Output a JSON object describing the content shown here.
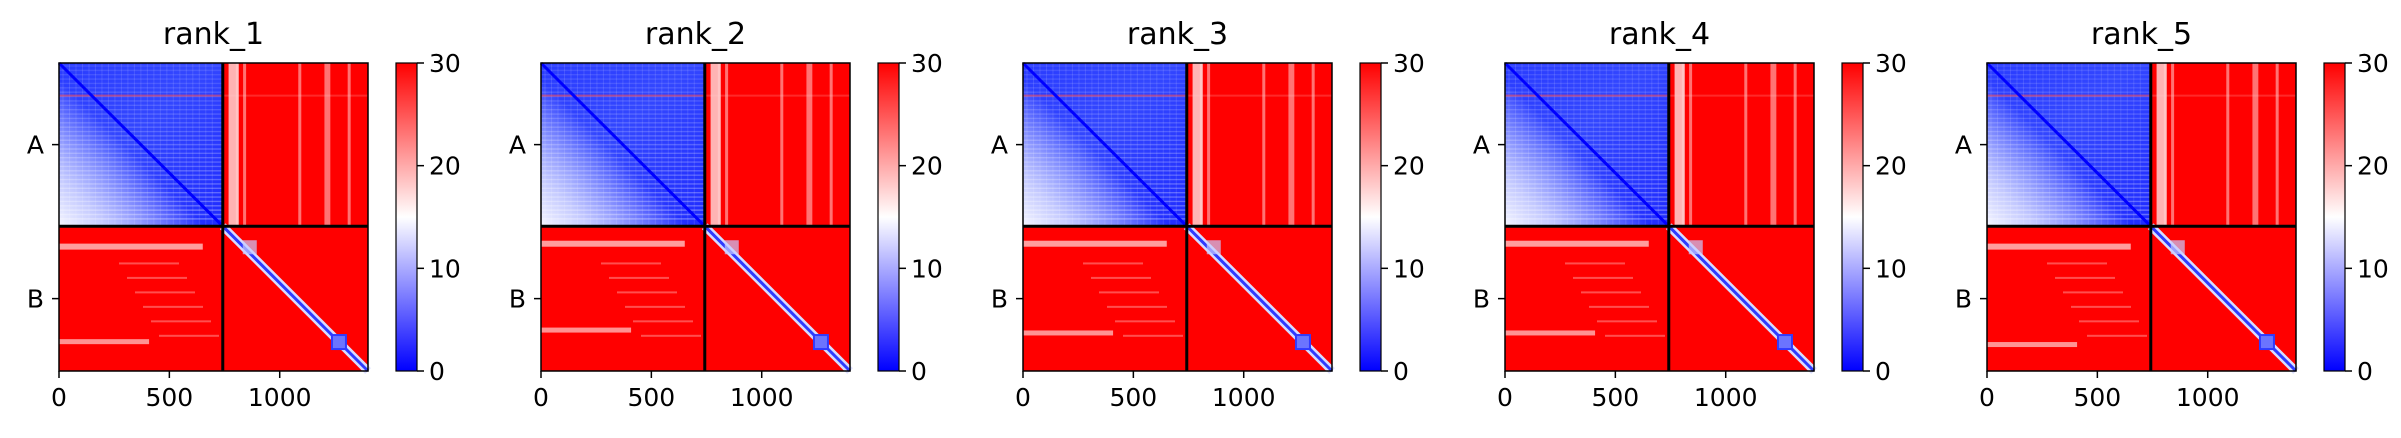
{
  "chart_data": [
    {
      "type": "heatmap",
      "title": "rank_1",
      "chains": [
        "A",
        "B"
      ],
      "chain_boundary": 742,
      "x_ticks": [
        0,
        500,
        1000
      ],
      "xlim": [
        0,
        1400
      ],
      "colorbar": {
        "min": 0,
        "max": 30,
        "ticks": [
          0,
          10,
          20,
          30
        ],
        "colors": [
          "#0000ff",
          "#ffffff",
          "#ff0000"
        ]
      },
      "dense_bands_A": [
        0.2
      ],
      "faint_band_B": 0.12,
      "faint_band_B2": 0.78,
      "light_band_x": [
        0.34
      ]
    },
    {
      "type": "heatmap",
      "title": "rank_2",
      "chains": [
        "A",
        "B"
      ],
      "chain_boundary": 742,
      "x_ticks": [
        0,
        500,
        1000
      ],
      "xlim": [
        0,
        1400
      ],
      "colorbar": {
        "min": 0,
        "max": 30,
        "ticks": [
          0,
          10,
          20,
          30
        ],
        "colors": [
          "#0000ff",
          "#ffffff",
          "#ff0000"
        ]
      },
      "dense_bands_A": [
        0.2
      ],
      "faint_band_B": 0.1,
      "faint_band_B2": 0.7,
      "light_band_x": [
        0.34
      ]
    },
    {
      "type": "heatmap",
      "title": "rank_3",
      "chains": [
        "A",
        "B"
      ],
      "chain_boundary": 742,
      "x_ticks": [
        0,
        500,
        1000
      ],
      "xlim": [
        0,
        1400
      ],
      "colorbar": {
        "min": 0,
        "max": 30,
        "ticks": [
          0,
          10,
          20,
          30
        ],
        "colors": [
          "#0000ff",
          "#ffffff",
          "#ff0000"
        ]
      },
      "dense_bands_A": [
        0.2
      ],
      "faint_band_B": 0.1,
      "faint_band_B2": 0.72,
      "light_band_x": [
        0.34
      ]
    },
    {
      "type": "heatmap",
      "title": "rank_4",
      "chains": [
        "A",
        "B"
      ],
      "chain_boundary": 742,
      "x_ticks": [
        0,
        500,
        1000
      ],
      "xlim": [
        0,
        1400
      ],
      "colorbar": {
        "min": 0,
        "max": 30,
        "ticks": [
          0,
          10,
          20,
          30
        ],
        "colors": [
          "#0000ff",
          "#ffffff",
          "#ff0000"
        ]
      },
      "dense_bands_A": [
        0.2
      ],
      "faint_band_B": 0.1,
      "faint_band_B2": 0.72,
      "light_band_x": [
        0.34
      ]
    },
    {
      "type": "heatmap",
      "title": "rank_5",
      "chains": [
        "A",
        "B"
      ],
      "chain_boundary": 742,
      "x_ticks": [
        0,
        500,
        1000
      ],
      "xlim": [
        0,
        1400
      ],
      "colorbar": {
        "min": 0,
        "max": 30,
        "ticks": [
          0,
          10,
          20,
          30
        ],
        "colors": [
          "#0000ff",
          "#ffffff",
          "#ff0000"
        ]
      },
      "dense_bands_A": [
        0.2
      ],
      "faint_band_B": 0.12,
      "faint_band_B2": 0.8,
      "light_band_x": [
        0.34
      ]
    }
  ]
}
